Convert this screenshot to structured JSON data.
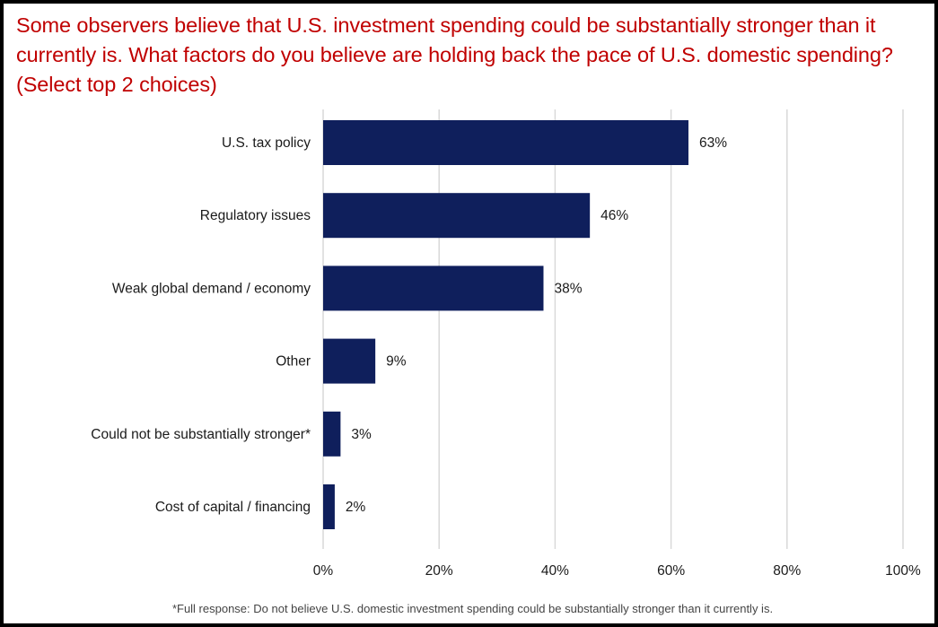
{
  "title": "Some observers believe that U.S. investment spending could be substantially stronger than it currently is. What factors do you believe are holding back the pace of U.S. domestic spending? (Select top 2 choices)",
  "footnote": "*Full response: Do not believe U.S. domestic investment spending could be substantially stronger than it currently is.",
  "colors": {
    "title": "#c00000",
    "bar": "#0f1f5c",
    "grid": "#d9d9d9",
    "frame": "#000000"
  },
  "chart_data": {
    "type": "bar",
    "orientation": "horizontal",
    "categories": [
      "U.S. tax policy",
      "Regulatory issues",
      "Weak global demand / economy",
      "Other",
      "Could not be substantially stronger*",
      "Cost of capital / financing"
    ],
    "values": [
      63,
      46,
      38,
      9,
      3,
      2
    ],
    "value_labels": [
      "63%",
      "46%",
      "38%",
      "9%",
      "3%",
      "2%"
    ],
    "xlim": [
      0,
      100
    ],
    "x_ticks": [
      0,
      20,
      40,
      60,
      80,
      100
    ],
    "x_tick_labels": [
      "0%",
      "20%",
      "40%",
      "60%",
      "80%",
      "100%"
    ],
    "grid": true,
    "legend": "none"
  }
}
